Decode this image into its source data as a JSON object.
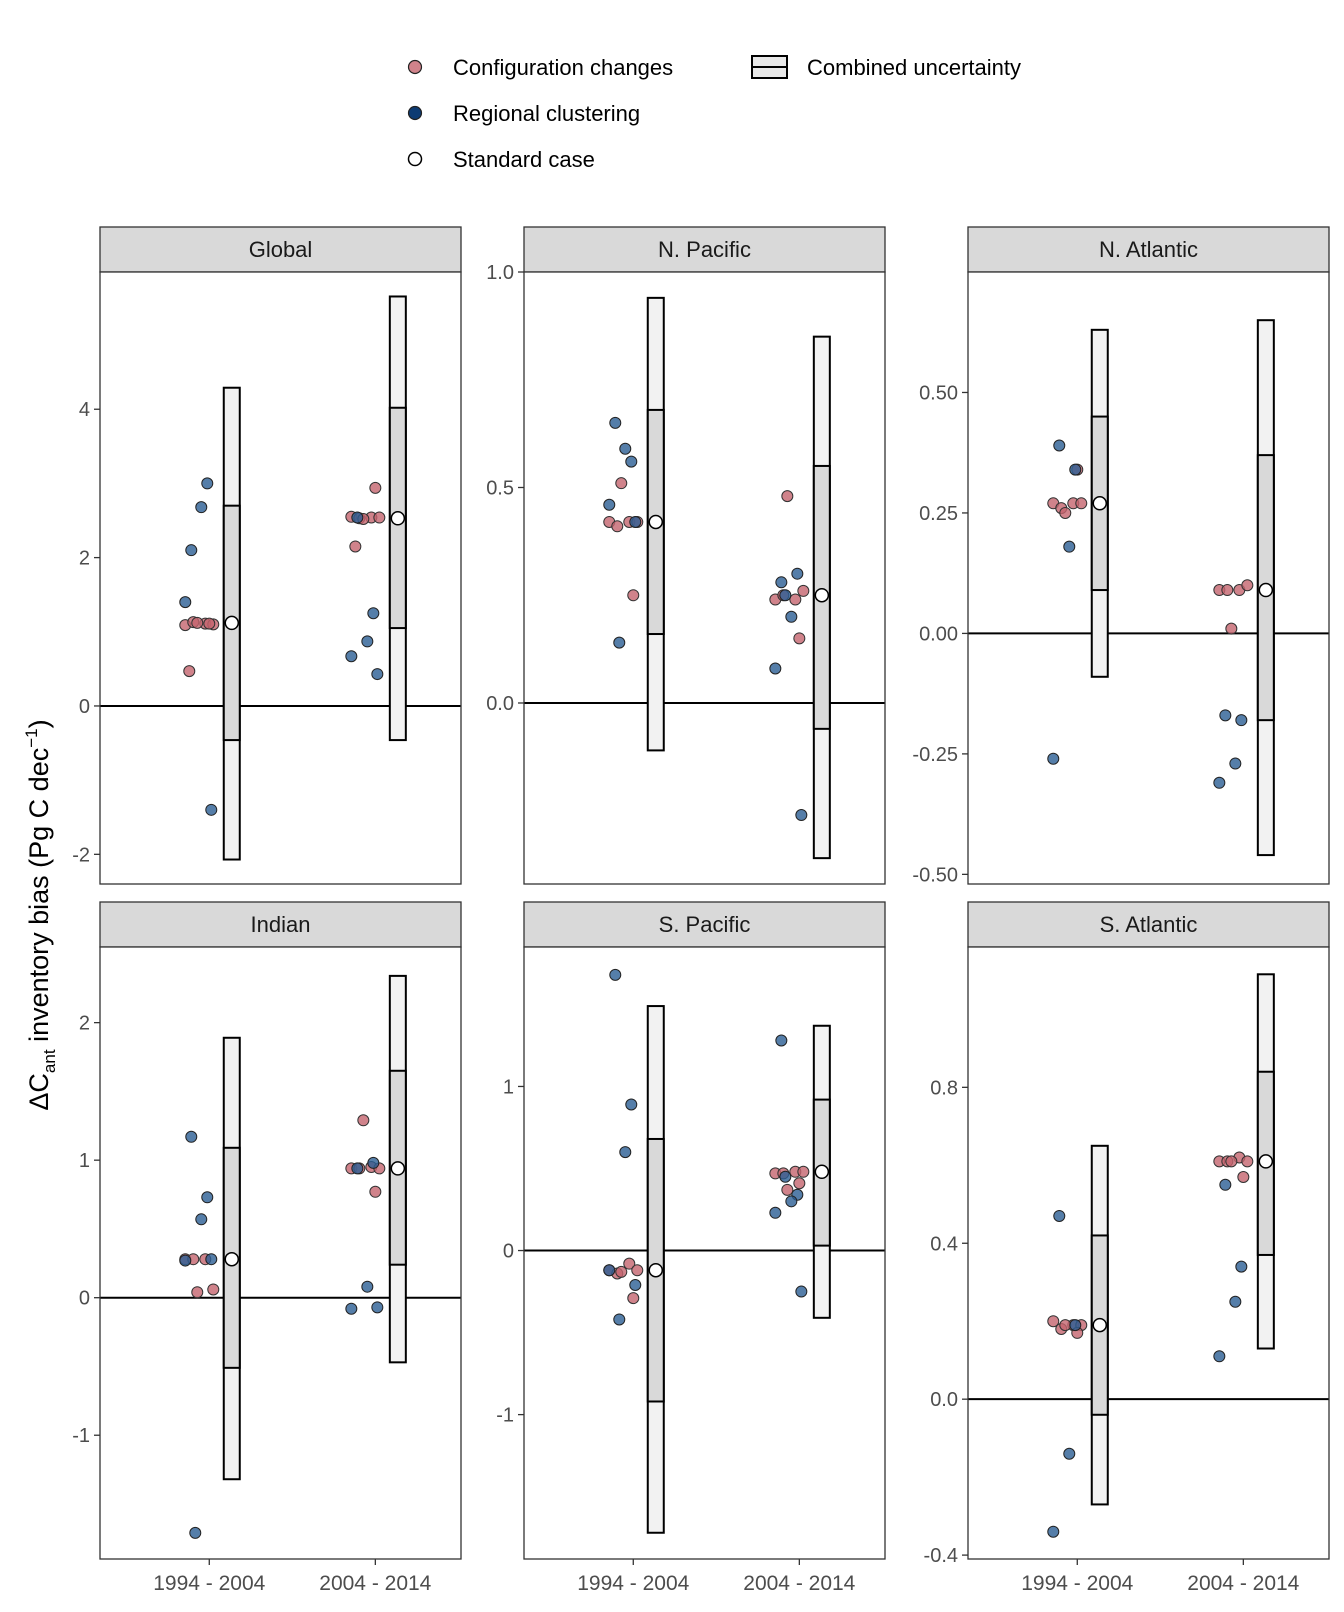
{
  "legend": {
    "config": "Configuration changes",
    "regional": "Regional clustering",
    "standard": "Standard case",
    "combined": "Combined uncertainty"
  },
  "y_label_main": "ΔC",
  "y_label_sub": "ant",
  "y_label_tail": " inventory bias (Pg C dec",
  "y_label_sup": "−1",
  "y_label_close": ")",
  "colors": {
    "config": "#c4646e",
    "regional": "#2a5e94",
    "standard": "#ffffff",
    "outer_box": "#f2f2f2",
    "inner_box": "#d9d9d9",
    "strip": "#d9d9d9"
  },
  "chart_data": [
    {
      "type": "scatter+range",
      "region": "Global",
      "categories": [
        "1994 - 2004",
        "2004 - 2014"
      ],
      "yticks": [
        -2,
        0,
        2,
        4
      ],
      "tick_labels": [
        "-2",
        "0",
        "2",
        "4"
      ],
      "ylim": [
        -2.4,
        5.85
      ],
      "standard": [
        1.12,
        2.53
      ],
      "outer": [
        [
          -2.07,
          4.29
        ],
        [
          -0.46,
          5.52
        ]
      ],
      "inner": [
        [
          -0.46,
          2.7
        ],
        [
          1.05,
          4.02
        ]
      ],
      "configuration": [
        [
          1.09,
          1.11,
          1.13,
          1.1,
          1.12,
          1.11,
          0.47
        ],
        [
          2.55,
          2.54,
          2.53,
          2.54,
          2.52,
          2.94,
          2.15
        ]
      ],
      "regional": [
        [
          2.1,
          3.0,
          2.68,
          1.4,
          -1.4
        ],
        [
          2.54,
          1.25,
          0.87,
          0.67,
          0.43
        ]
      ]
    },
    {
      "type": "scatter+range",
      "region": "N. Pacific",
      "categories": [
        "1994 - 2004",
        "2004 - 2014"
      ],
      "yticks": [
        0.0,
        0.5,
        1.0
      ],
      "tick_labels": [
        "0.0",
        "0.5",
        "1.0"
      ],
      "ylim": [
        -0.42,
        1.0
      ],
      "standard": [
        0.42,
        0.25
      ],
      "outer": [
        [
          -0.11,
          0.94
        ],
        [
          -0.36,
          0.85
        ]
      ],
      "inner": [
        [
          0.16,
          0.68
        ],
        [
          -0.06,
          0.55
        ]
      ],
      "configuration": [
        [
          0.42,
          0.42,
          0.41,
          0.42,
          0.51,
          0.25
        ],
        [
          0.24,
          0.24,
          0.25,
          0.26,
          0.48,
          0.15
        ]
      ],
      "regional": [
        [
          0.65,
          0.56,
          0.59,
          0.46,
          0.42,
          0.14
        ],
        [
          0.28,
          0.3,
          0.2,
          0.08,
          -0.26,
          0.25
        ]
      ]
    },
    {
      "type": "scatter+range",
      "region": "N. Atlantic",
      "categories": [
        "1994 - 2004",
        "2004 - 2014"
      ],
      "yticks": [
        -0.5,
        -0.25,
        0.0,
        0.25,
        0.5
      ],
      "tick_labels": [
        "-0.50",
        "-0.25",
        "0.00",
        "0.25",
        "0.50"
      ],
      "ylim": [
        -0.52,
        0.75
      ],
      "standard": [
        0.27,
        0.09
      ],
      "outer": [
        [
          -0.09,
          0.63
        ],
        [
          -0.46,
          0.65
        ]
      ],
      "inner": [
        [
          0.09,
          0.45
        ],
        [
          -0.18,
          0.37
        ]
      ],
      "configuration": [
        [
          0.27,
          0.27,
          0.26,
          0.27,
          0.25,
          0.34
        ],
        [
          0.09,
          0.09,
          0.09,
          0.1,
          0.01
        ]
      ],
      "regional": [
        [
          0.39,
          0.34,
          0.18,
          -0.26
        ],
        [
          -0.17,
          -0.18,
          -0.27,
          -0.31
        ]
      ]
    },
    {
      "type": "scatter+range",
      "region": "Indian",
      "categories": [
        "1994 - 2004",
        "2004 - 2014"
      ],
      "yticks": [
        -1,
        0,
        1,
        2
      ],
      "tick_labels": [
        "-1",
        "0",
        "1",
        "2"
      ],
      "ylim": [
        -1.9,
        2.55
      ],
      "standard": [
        0.28,
        0.94
      ],
      "outer": [
        [
          -1.32,
          1.89
        ],
        [
          -0.47,
          2.34
        ]
      ],
      "inner": [
        [
          -0.51,
          1.09
        ],
        [
          0.24,
          1.65
        ]
      ],
      "configuration": [
        [
          0.28,
          0.28,
          0.28,
          0.06,
          0.04
        ],
        [
          0.94,
          0.95,
          0.94,
          0.94,
          1.29,
          0.77
        ]
      ],
      "regional": [
        [
          1.17,
          0.73,
          0.57,
          0.27,
          0.28,
          -1.71
        ],
        [
          0.94,
          0.98,
          0.08,
          -0.08,
          -0.07
        ]
      ]
    },
    {
      "type": "scatter+range",
      "region": "S. Pacific",
      "categories": [
        "1994 - 2004",
        "2004 - 2014"
      ],
      "yticks": [
        -1,
        0,
        1
      ],
      "tick_labels": [
        "-1",
        "0",
        "1"
      ],
      "ylim": [
        -1.88,
        1.85
      ],
      "standard": [
        -0.12,
        0.48
      ],
      "outer": [
        [
          -1.72,
          1.49
        ],
        [
          -0.41,
          1.37
        ]
      ],
      "inner": [
        [
          -0.92,
          0.68
        ],
        [
          0.03,
          0.92
        ]
      ],
      "configuration": [
        [
          -0.12,
          -0.08,
          -0.14,
          -0.12,
          -0.13,
          -0.29
        ],
        [
          0.47,
          0.48,
          0.47,
          0.48,
          0.37,
          0.41
        ]
      ],
      "regional": [
        [
          1.68,
          0.89,
          0.6,
          -0.12,
          -0.21,
          -0.42
        ],
        [
          1.28,
          0.34,
          0.3,
          0.23,
          -0.25,
          0.45
        ]
      ]
    },
    {
      "type": "scatter+range",
      "region": "S. Atlantic",
      "categories": [
        "1994 - 2004",
        "2004 - 2014"
      ],
      "yticks": [
        -0.4,
        0.0,
        0.4,
        0.8
      ],
      "tick_labels": [
        "-0.4",
        "0.0",
        "0.4",
        "0.8"
      ],
      "ylim": [
        -0.41,
        1.16
      ],
      "standard": [
        0.19,
        0.61
      ],
      "outer": [
        [
          -0.27,
          0.65
        ],
        [
          0.13,
          1.09
        ]
      ],
      "inner": [
        [
          -0.04,
          0.42
        ],
        [
          0.37,
          0.84
        ]
      ],
      "configuration": [
        [
          0.2,
          0.19,
          0.18,
          0.19,
          0.19,
          0.17
        ],
        [
          0.61,
          0.62,
          0.61,
          0.61,
          0.61,
          0.57
        ]
      ],
      "regional": [
        [
          0.47,
          0.19,
          -0.14,
          -0.34
        ],
        [
          0.55,
          0.34,
          0.25,
          0.11
        ]
      ]
    }
  ]
}
